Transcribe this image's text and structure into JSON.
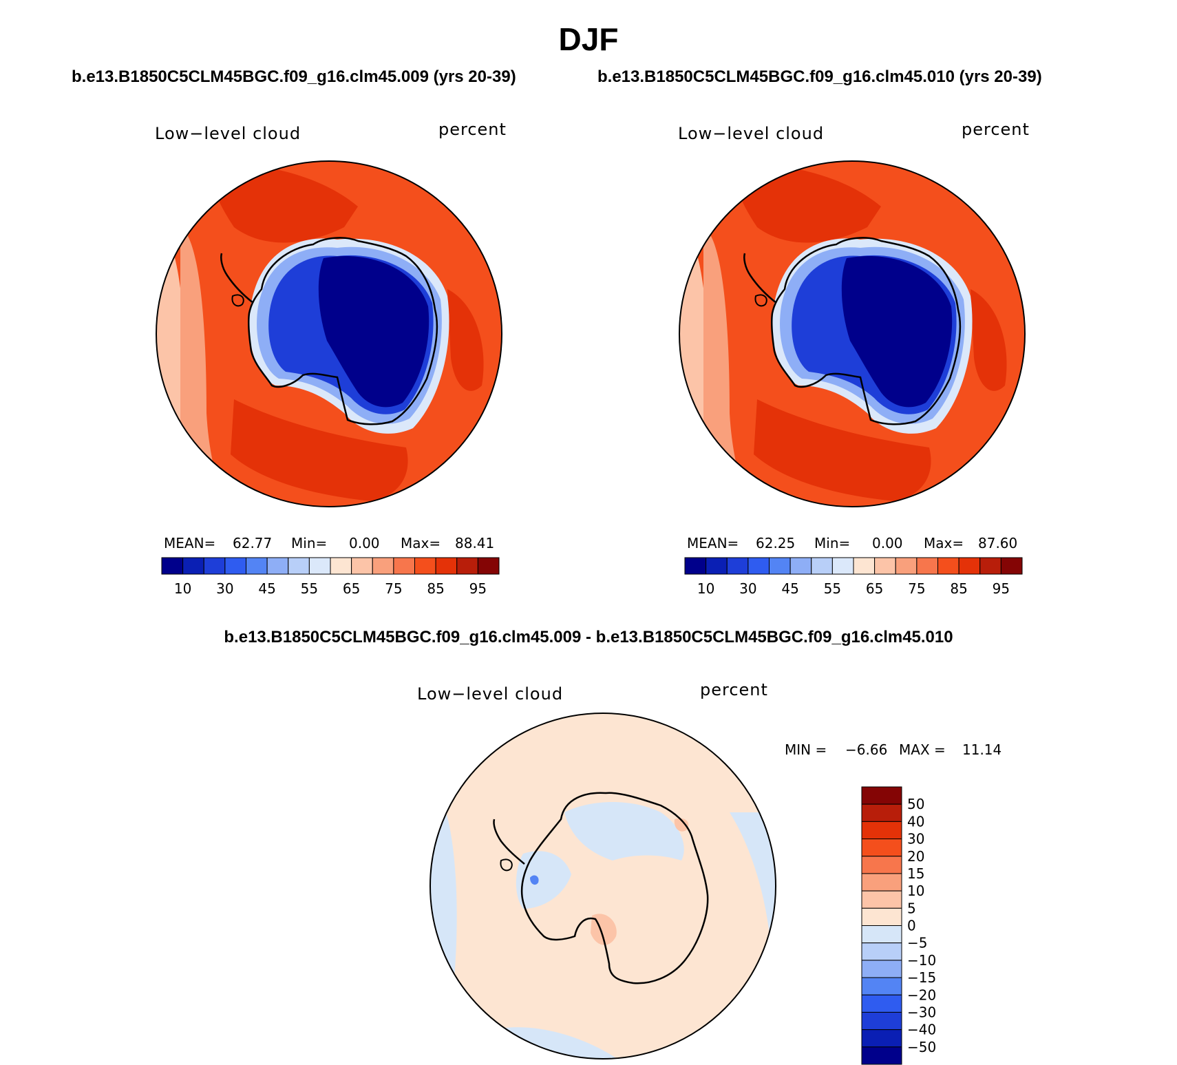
{
  "figure": {
    "title": "DJF",
    "diff_title": "b.e13.B1850C5CLM45BGC.f09_g16.clm45.009 - b.e13.B1850C5CLM45BGC.f09_g16.clm45.010"
  },
  "panels": [
    {
      "case": "b.e13.B1850C5CLM45BGC.f09_g16.clm45.009 (yrs 20-39)",
      "variable": "Low−level cloud",
      "units": "percent",
      "mean_label": "MEAN=",
      "mean_value": "62.77",
      "min_label": "Min=",
      "min_value": "0.00",
      "max_label": "Max=",
      "max_value": "88.41",
      "colorbar_ticks": [
        "10",
        "30",
        "45",
        "55",
        "65",
        "75",
        "85",
        "95"
      ]
    },
    {
      "case": "b.e13.B1850C5CLM45BGC.f09_g16.clm45.010 (yrs 20-39)",
      "variable": "Low−level cloud",
      "units": "percent",
      "mean_label": "MEAN=",
      "mean_value": "62.25",
      "min_label": "Min=",
      "min_value": "0.00",
      "max_label": "Max=",
      "max_value": "87.60",
      "colorbar_ticks": [
        "10",
        "30",
        "45",
        "55",
        "65",
        "75",
        "85",
        "95"
      ]
    }
  ],
  "diff_panel": {
    "variable": "Low−level cloud",
    "units": "percent",
    "min_label": "MIN =",
    "min_value": "−6.66",
    "max_label": "MAX =",
    "max_value": "11.14",
    "colorbar_ticks": [
      "50",
      "40",
      "30",
      "20",
      "15",
      "10",
      "5",
      "0",
      "−5",
      "−10",
      "−15",
      "−20",
      "−30",
      "−40",
      "−50"
    ]
  },
  "colors": {
    "abs_scale": [
      "#00008b",
      "#0a1fb4",
      "#1e3ed8",
      "#2f5cf0",
      "#5384f4",
      "#8eaef6",
      "#b8cff8",
      "#dbe8fa",
      "#fde5d2",
      "#fcc4a8",
      "#f9a07c",
      "#f7764c",
      "#f44f1c",
      "#e43208",
      "#b81e0a",
      "#840505"
    ],
    "diff_scale": [
      "#840505",
      "#b81e0a",
      "#e43208",
      "#f44f1c",
      "#f7764c",
      "#f9a07c",
      "#fcc4a8",
      "#fde5d2",
      "#d6e6f8",
      "#b8cff8",
      "#8eaef6",
      "#5384f4",
      "#2f5cf0",
      "#1e3ed8",
      "#0a1fb4",
      "#00008b"
    ]
  }
}
